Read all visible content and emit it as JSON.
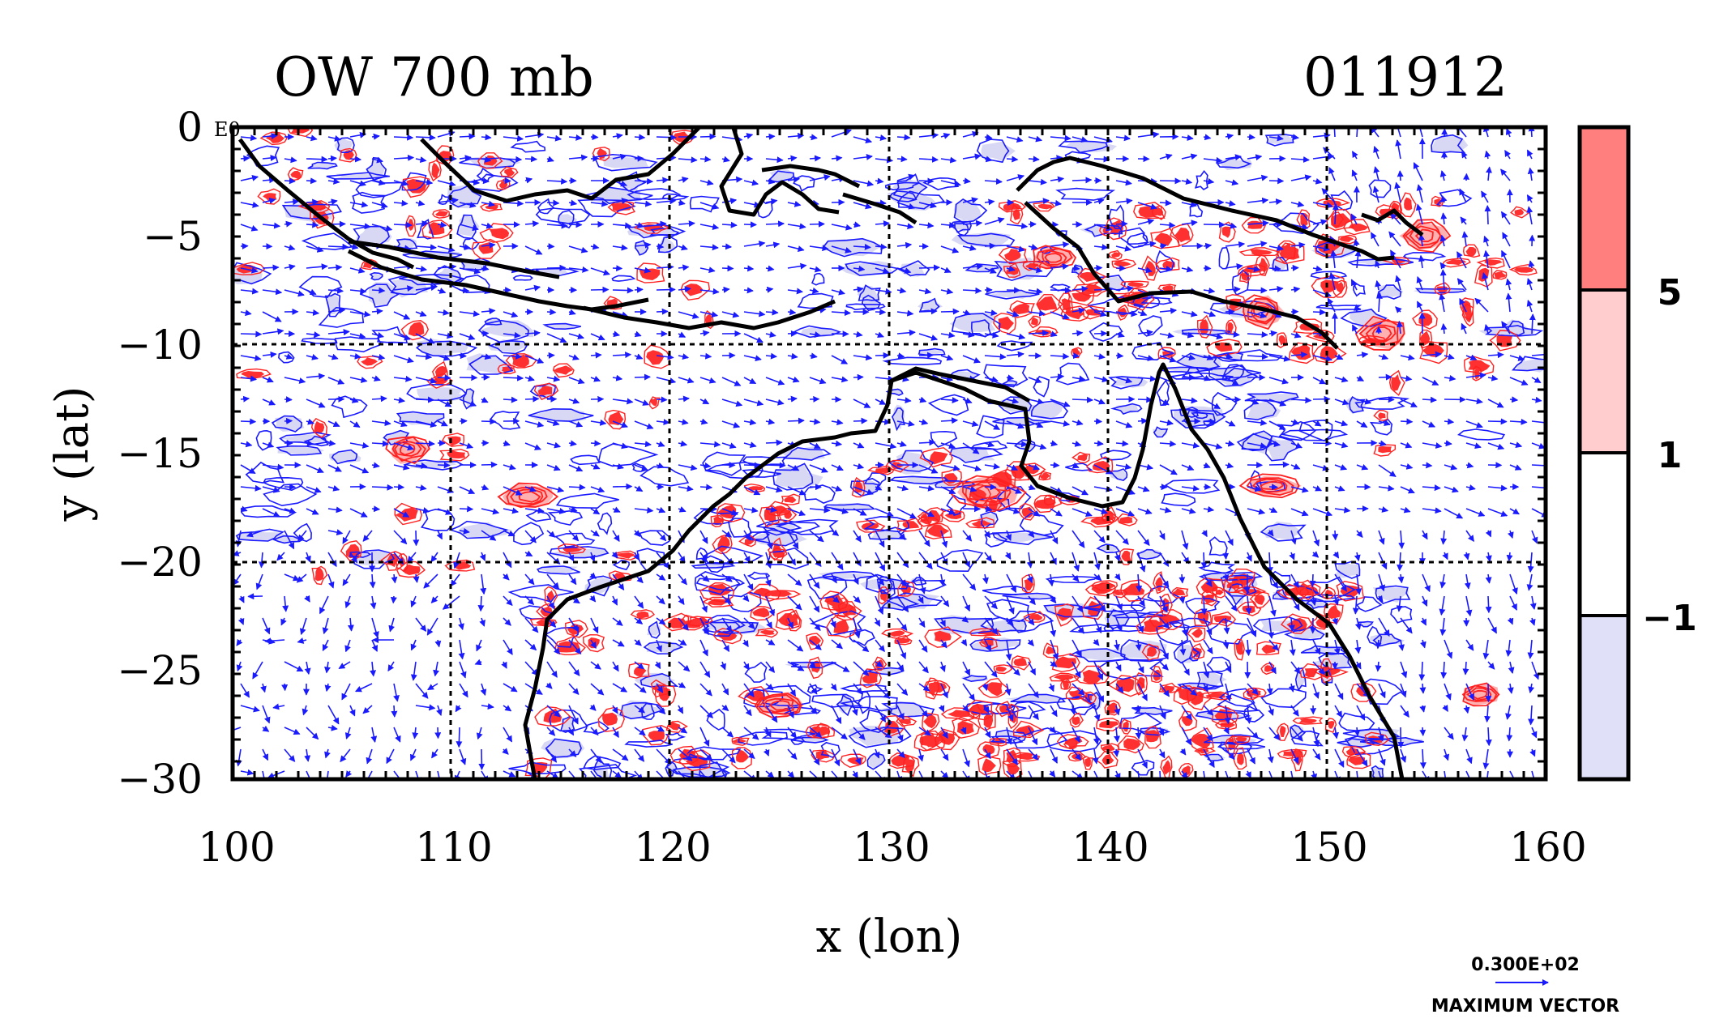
{
  "title_left": "OW 700 mb",
  "title_right": "011912",
  "corner_label": "E0",
  "xlabel": "x (lon)",
  "ylabel": "y (lat)",
  "x_ticks": [
    "100",
    "110",
    "120",
    "130",
    "140",
    "150",
    "160"
  ],
  "y_ticks": [
    "0",
    "−5",
    "−10",
    "−15",
    "−20",
    "−25",
    "−30"
  ],
  "colorbar": {
    "labels": [
      "5",
      "1",
      "−1"
    ],
    "colors": [
      "#ff7f7f",
      "#ffcdcd",
      "#ffffff",
      "#e0e0f8"
    ]
  },
  "vector_key": {
    "value": "0.300E+02",
    "caption": "MAXIMUM VECTOR",
    "color": "#1a1aff"
  },
  "colors": {
    "positive_contour": "#ff2020",
    "negative_contour": "#1a1aff",
    "coastline": "#000000",
    "grid": "#000000"
  },
  "chart_data": {
    "type": "heatmap",
    "title": "OW 700 mb",
    "subtitle": "011912",
    "xlabel": "x (lon)",
    "ylabel": "y (lat)",
    "xlim": [
      100,
      160
    ],
    "ylim": [
      -30,
      0
    ],
    "x_ticks": [
      100,
      110,
      120,
      130,
      140,
      150,
      160
    ],
    "y_ticks": [
      0,
      -5,
      -10,
      -15,
      -20,
      -25,
      -30
    ],
    "grid": true,
    "colorbar_levels": [
      -1,
      1,
      5
    ],
    "vector_scale": "0.300E+02",
    "positive_centers": [
      {
        "lon": 108,
        "lat": -14.8
      },
      {
        "lon": 113.5,
        "lat": -17.0
      },
      {
        "lon": 147,
        "lat": -8.5
      },
      {
        "lon": 152.5,
        "lat": -9.5
      },
      {
        "lon": 154.5,
        "lat": -5.0
      },
      {
        "lon": 147.5,
        "lat": -16.5
      },
      {
        "lon": 134.5,
        "lat": -16.8
      },
      {
        "lon": 137.5,
        "lat": -6.0
      },
      {
        "lon": 125,
        "lat": -26.6
      },
      {
        "lon": 157,
        "lat": -26.1
      }
    ]
  }
}
